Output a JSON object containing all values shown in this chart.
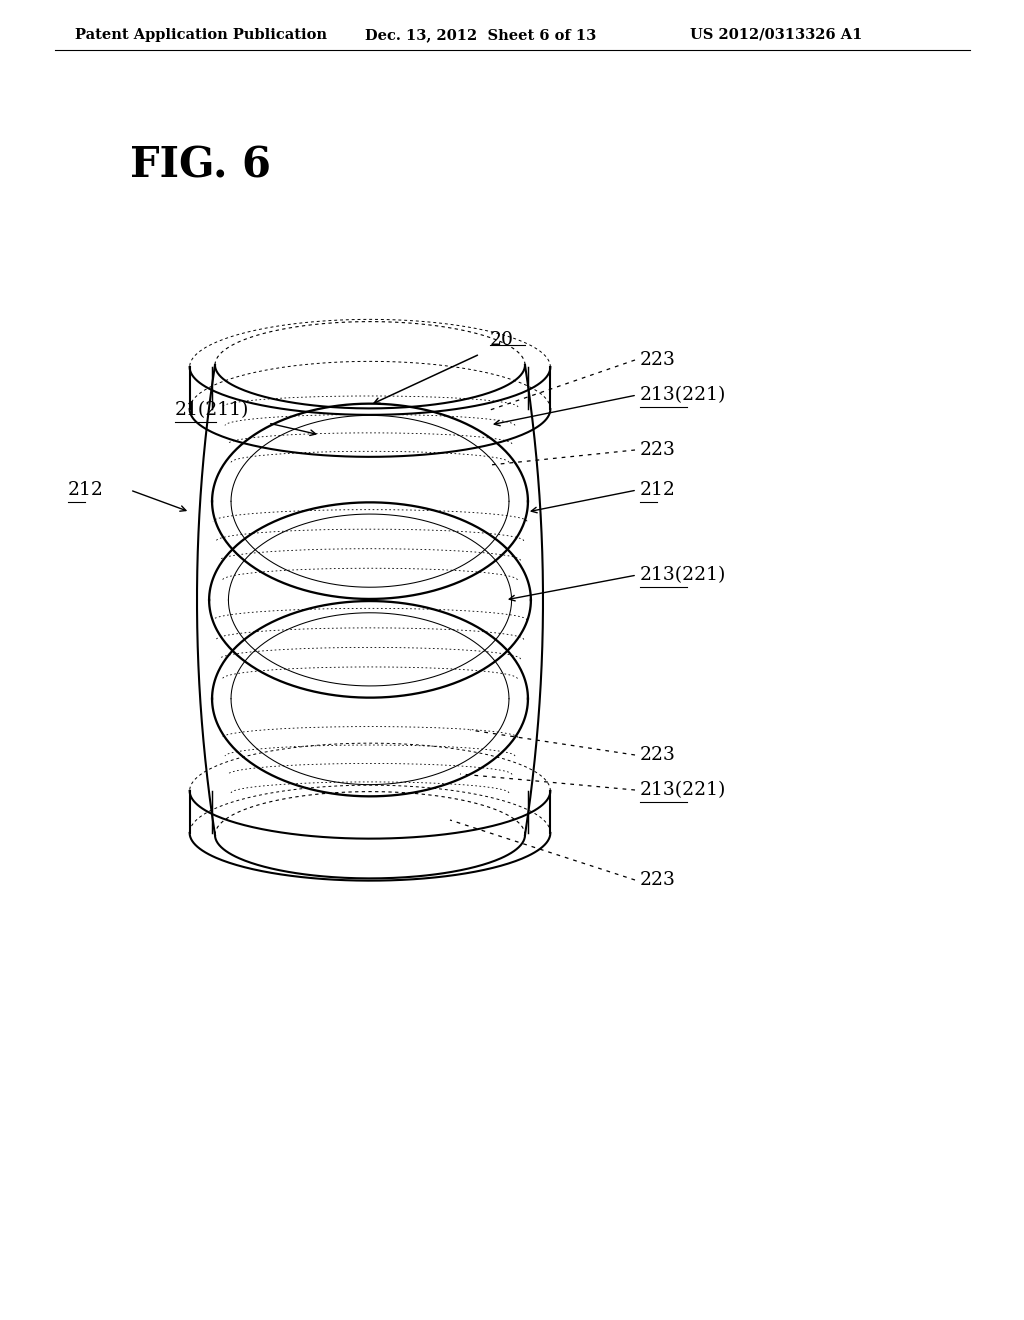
{
  "bg_color": "#ffffff",
  "header_left": "Patent Application Publication",
  "header_mid": "Dec. 13, 2012  Sheet 6 of 13",
  "header_right": "US 2012/0313326 A1",
  "fig_label": "FIG. 6",
  "header_fontsize": 10.5,
  "fig_label_fontsize": 30,
  "annotation_fontsize": 13.5
}
